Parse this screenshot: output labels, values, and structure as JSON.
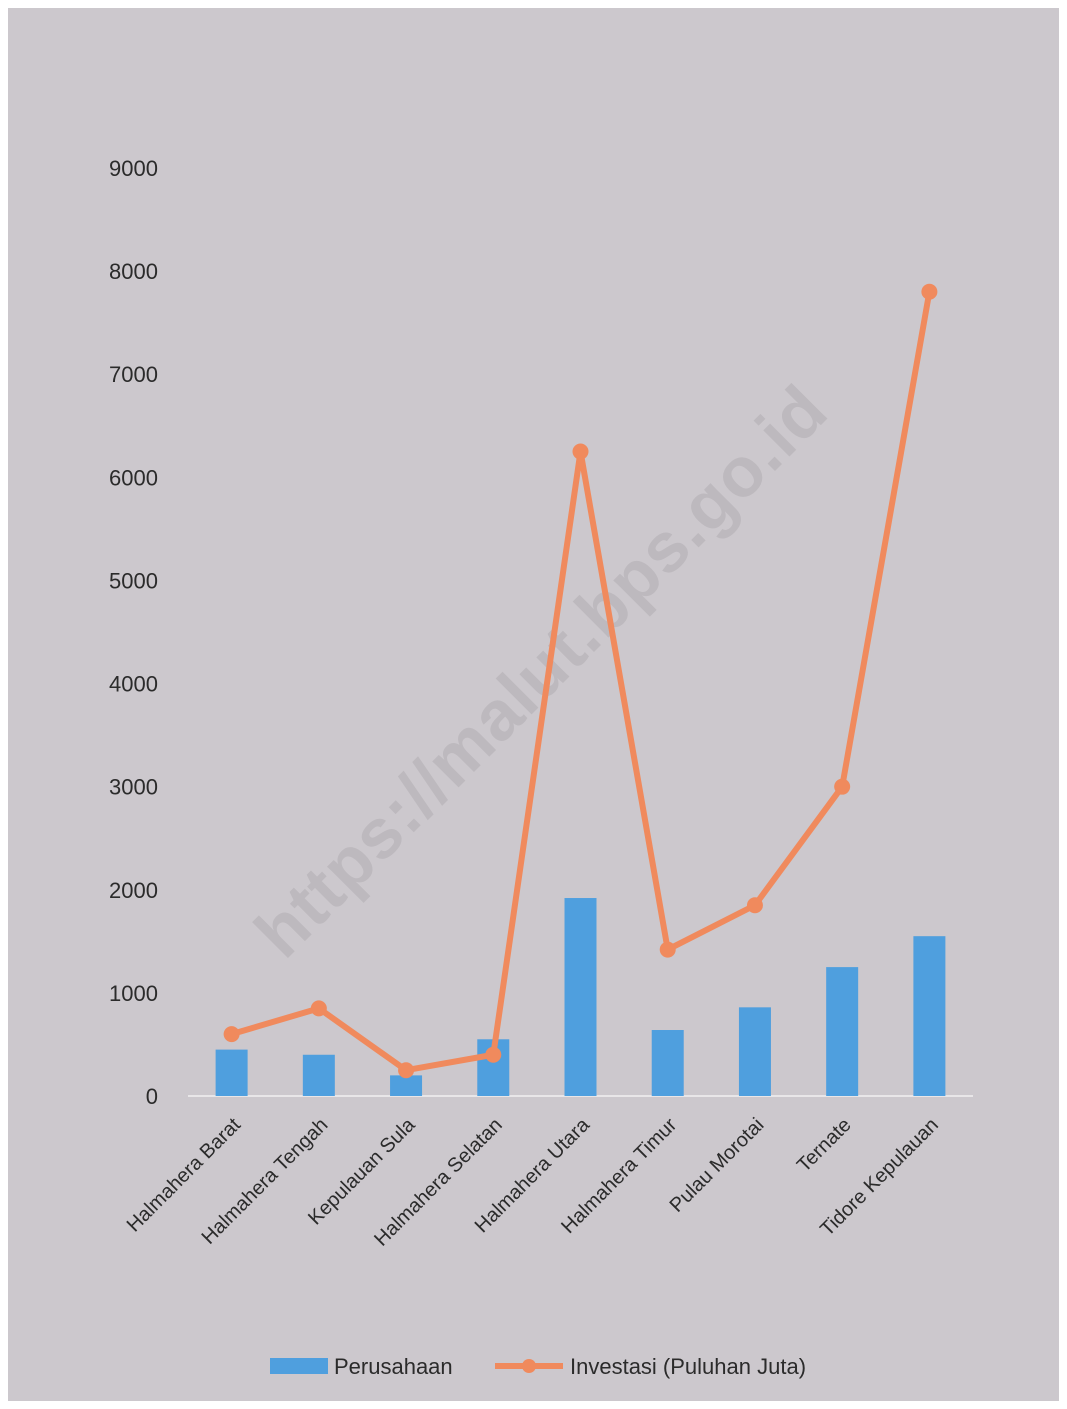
{
  "watermark": "https://malut.bps.go.id",
  "chart_data": {
    "type": "bar",
    "title": "",
    "xlabel": "",
    "ylabel": "",
    "ylim": [
      0,
      9000
    ],
    "yticks": [
      0,
      1000,
      2000,
      3000,
      4000,
      5000,
      6000,
      7000,
      8000,
      9000
    ],
    "grid": false,
    "legend_position": "bottom",
    "categories": [
      "Halmahera Barat",
      "Halmahera Tengah",
      "Kepulauan Sula",
      "Halmahera Selatan",
      "Halmahera Utara",
      "Halmahera Timur",
      "Pulau Morotai",
      "Ternate",
      "Tidore Kepulauan"
    ],
    "series": [
      {
        "name": "Perusahaan",
        "type": "bar",
        "color": "#4f9fde",
        "values": [
          450,
          400,
          200,
          550,
          1920,
          640,
          860,
          1250,
          1550
        ]
      },
      {
        "name": "Investasi (Puluhan Juta)",
        "type": "line",
        "color": "#f08a5d",
        "values": [
          600,
          850,
          250,
          400,
          6250,
          1420,
          1850,
          3000,
          7800
        ]
      }
    ]
  }
}
